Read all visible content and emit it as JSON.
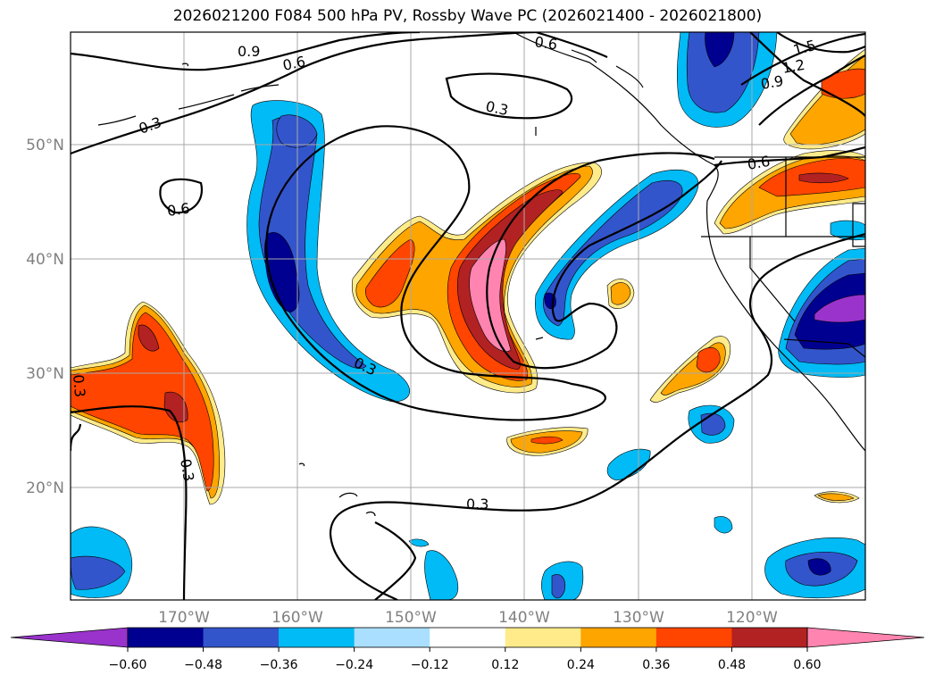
{
  "title": "2026021200 F084 500 hPa PV, Rossby Wave PC (2026021400 - 2026021800)",
  "lat_labels": [
    "50°N",
    "40°N",
    "30°N",
    "20°N"
  ],
  "lon_labels": [
    "170°W",
    "160°W",
    "150°W",
    "140°W",
    "130°W",
    "120°W"
  ],
  "contour_labels": [
    "0.9",
    "0.6",
    "0.6",
    "0.3",
    "0.3",
    "0.6",
    "0.3",
    "0.3",
    "0.3",
    "0.3",
    "1.5",
    "1.2",
    "0.9",
    "0.6"
  ],
  "colorbar": {
    "ticks": [
      "−0.60",
      "−0.48",
      "−0.36",
      "−0.24",
      "−0.12",
      "0.12",
      "0.24",
      "0.36",
      "0.48",
      "0.60"
    ],
    "colors": [
      "#9933cc",
      "#000090",
      "#3355cc",
      "#00bbf5",
      "#aadfff",
      "#ffffff",
      "#ffeb8a",
      "#ffa500",
      "#ff4500",
      "#b22222",
      "#ff85b0",
      "#ff85b0"
    ]
  },
  "fill_colors": {
    "purple": "#9933cc",
    "navy": "#000090",
    "blue": "#3355cc",
    "cyan": "#00bbf5",
    "lightcyan": "#aadfff",
    "yellow": "#ffeb8a",
    "orange": "#ffa500",
    "redorange": "#ff4500",
    "firebrick": "#b22222",
    "pink": "#ff85b0"
  }
}
